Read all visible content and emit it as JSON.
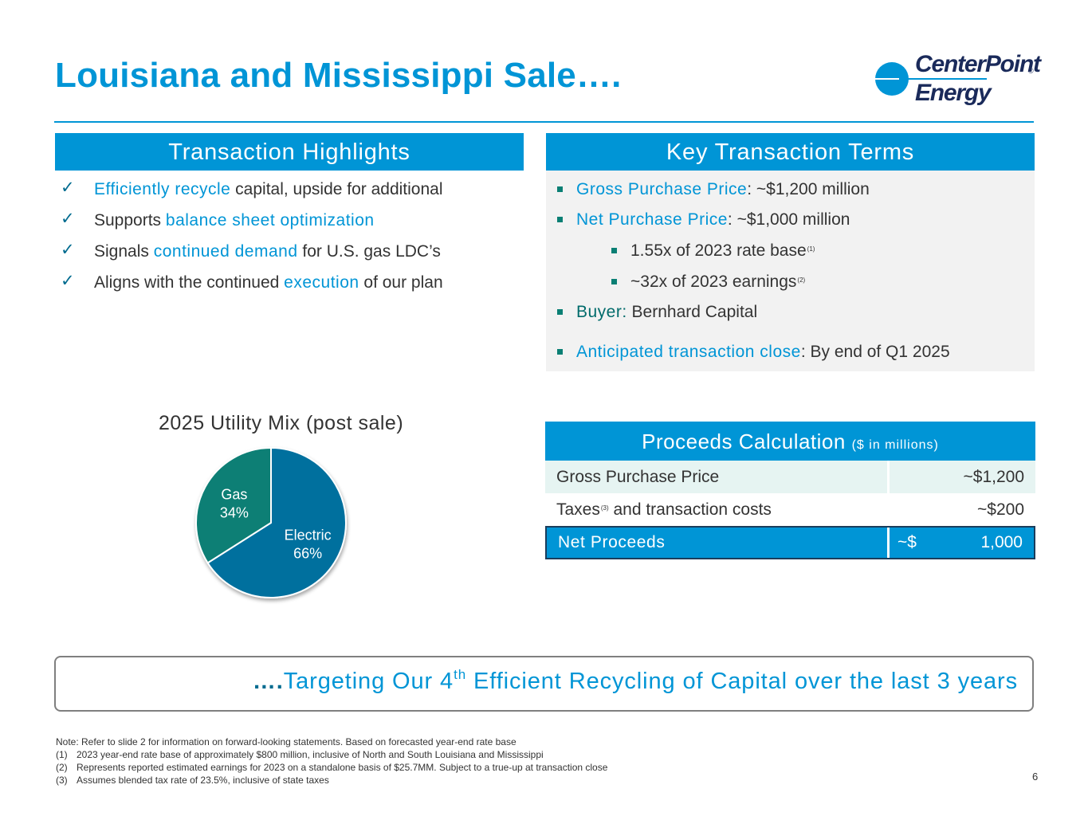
{
  "slide": {
    "title": "Louisiana and Mississippi Sale….",
    "page_number": "6",
    "logo": {
      "line1": "CenterPoint",
      "line2": "Energy",
      "reg": "®"
    }
  },
  "highlights": {
    "header": "Transaction Highlights",
    "items": [
      {
        "pre": "",
        "hl": "Efficiently recycle",
        "post": " capital, upside for additional"
      },
      {
        "pre": "Supports ",
        "hl": "balance sheet optimization",
        "post": ""
      },
      {
        "pre": "Signals ",
        "hl": "continued demand",
        "post": " for U.S. gas LDC’s"
      },
      {
        "pre": "Aligns with the continued ",
        "hl": "execution",
        "post": " of our plan"
      }
    ]
  },
  "terms": {
    "header": "Key Transaction Terms",
    "gross_label": "Gross Purchase Price",
    "gross_value": ": ~$1,200 million",
    "net_label": "Net Purchase Price",
    "net_value": ": ~$1,000 million",
    "sub1": "1.55x of 2023 rate base",
    "sub1_note": "(1)",
    "sub2": "~32x of 2023 earnings",
    "sub2_note": "(2)",
    "buyer_label": "Buyer:",
    "buyer_value": " Bernhard Capital",
    "close_label": "Anticipated transaction close",
    "close_value": ": By end of Q1 2025"
  },
  "chart_data": {
    "type": "pie",
    "title": "2025 Utility Mix (post sale)",
    "categories": [
      "Electric",
      "Gas"
    ],
    "values": [
      66,
      34
    ],
    "labels": [
      "66%",
      "34%"
    ],
    "colors": [
      "#00709e",
      "#0a7f74"
    ]
  },
  "proceeds": {
    "header": "Proceeds Calculation",
    "header_unit": "($ in millions)",
    "row1_label": "Gross Purchase Price",
    "row1_value": "~$1,200",
    "row2_label": "Taxes",
    "row2_note": "(3)",
    "row2_label_rest": " and transaction costs",
    "row2_value": "~$200",
    "row3_label": "Net Proceeds",
    "row3_currency": "~$",
    "row3_value": "1,000"
  },
  "banner": {
    "dots": "….",
    "text_a": "Targeting Our 4",
    "text_sup": "th",
    "text_b": " Efficient Recycling of Capital over the last 3 years"
  },
  "notes": {
    "first": "Note: Refer to slide 2 for information on forward-looking statements. Based on forecasted year-end rate base",
    "items": [
      {
        "num": "(1)",
        "text": "2023 year-end rate base of approximately $800 million, inclusive of North and South Louisiana and Mississippi"
      },
      {
        "num": "(2)",
        "text": "Represents reported estimated earnings for 2023 on a standalone basis of $25.7MM. Subject to a true-up at transaction close"
      },
      {
        "num": "(3)",
        "text": "Assumes blended tax rate of 23.5%, inclusive of state taxes"
      }
    ]
  }
}
